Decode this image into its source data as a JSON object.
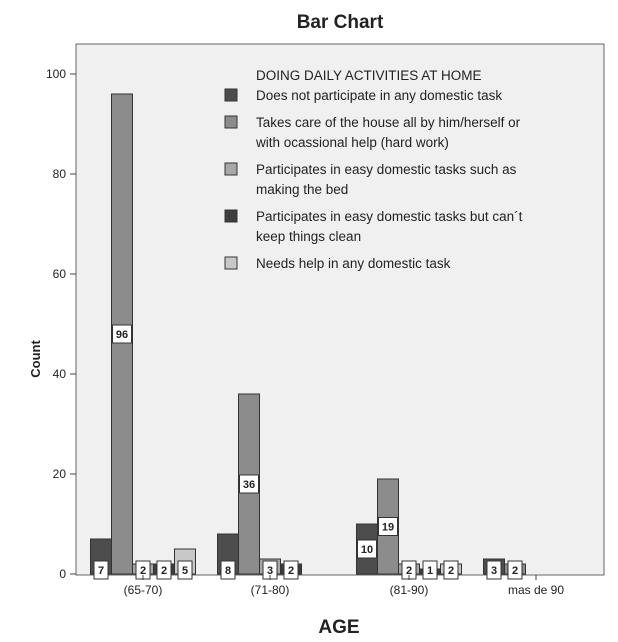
{
  "chart_data": {
    "type": "bar",
    "title": "Bar Chart",
    "xlabel": "AGE",
    "ylabel": "Count",
    "ylim": [
      0,
      100
    ],
    "yticks": [
      0,
      20,
      40,
      60,
      80,
      100
    ],
    "categories": [
      "(65-70)",
      "(71-80)",
      "(81-90)",
      "mas de 90"
    ],
    "legend_title": "DOING DAILY ACTIVITIES AT HOME",
    "legend_position": "top-right",
    "grid": false,
    "series": [
      {
        "name": "Does not participate in any domestic task",
        "legend_lines": [
          "Does not participate in any domestic task"
        ],
        "color": "#4d4d4d",
        "values": [
          7,
          8,
          10,
          3
        ],
        "labels": [
          "7",
          "8",
          "10",
          "3"
        ]
      },
      {
        "name": "Takes care of the house all by him/herself or with ocassional help (hard work)",
        "legend_lines": [
          "Takes care of the house all by him/herself or",
          "with ocassional help (hard work)"
        ],
        "color": "#8c8c8c",
        "values": [
          96,
          36,
          19,
          2
        ],
        "labels": [
          "96",
          "36",
          "19",
          "2"
        ]
      },
      {
        "name": "Participates in easy domestic tasks such as making the bed",
        "legend_lines": [
          "Participates in easy domestic tasks such as",
          "making the bed"
        ],
        "color": "#a8a8a8",
        "values": [
          2,
          3,
          2,
          0
        ],
        "labels": [
          "2",
          "3",
          "2",
          ""
        ]
      },
      {
        "name": "Participates in easy domestic tasks but can´t keep things clean",
        "legend_lines": [
          "Participates in easy domestic tasks but can´t",
          "keep things clean"
        ],
        "color": "#3d3d3d",
        "values": [
          2,
          2,
          1,
          0
        ],
        "labels": [
          "2",
          "2",
          "1",
          ""
        ]
      },
      {
        "name": "Needs help in any domestic task",
        "legend_lines": [
          "Needs help in any domestic task"
        ],
        "color": "#c8c8c8",
        "values": [
          5,
          0,
          2,
          0
        ],
        "labels": [
          "5",
          "",
          "2",
          ""
        ]
      }
    ]
  }
}
